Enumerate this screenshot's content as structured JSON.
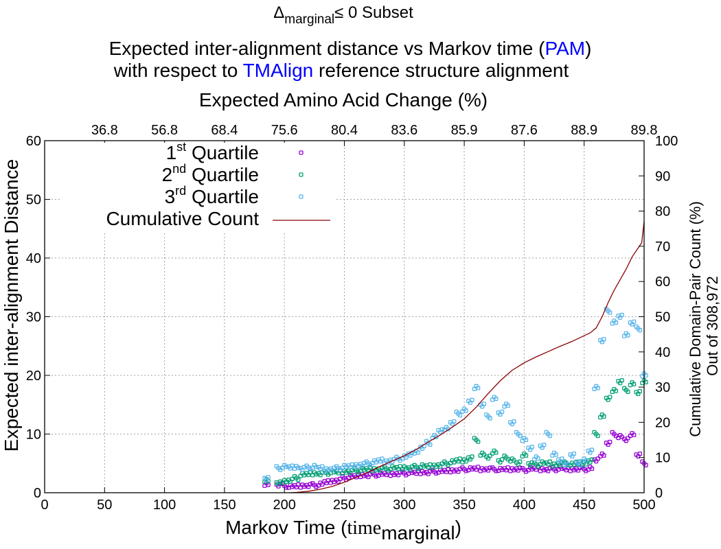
{
  "chart_data": {
    "type": "scatter",
    "title_line1_main": "Δ",
    "title_line1_sub": "marginal",
    "title_line1_rest": "≤ 0 Subset",
    "title_line2_a": "Expected inter-alignment distance vs Markov time (",
    "title_line2_b": "PAM",
    "title_line2_c": ")",
    "title_line3_a": "with respect to ",
    "title_line3_b": "TMAlign",
    "title_line3_c": " reference structure alignment",
    "highlight_color": "#0000ff",
    "x2label": "Expected Amino Acid Change (%)",
    "x2ticks": [
      "36.8",
      "56.8",
      "68.4",
      "75.6",
      "80.4",
      "83.6",
      "85.9",
      "87.6",
      "88.9",
      "89.8"
    ],
    "xlabel_main": "Markov Time (",
    "xlabel_time": "time",
    "xlabel_sub": "marginal",
    "xlabel_end": ")",
    "ylabel": "Expected inter-alignment Distance",
    "y2label_line1": "Cumulative Domain-Pair Count (%)",
    "y2label_line2": "Out of 308,972",
    "xlim": [
      0,
      500
    ],
    "ylim": [
      0,
      60
    ],
    "y2lim": [
      0,
      100
    ],
    "xticks": [
      0,
      50,
      100,
      150,
      200,
      250,
      300,
      350,
      400,
      450,
      500
    ],
    "yticks": [
      0,
      10,
      20,
      30,
      40,
      50,
      60
    ],
    "y2ticks": [
      0,
      10,
      20,
      30,
      40,
      50,
      60,
      70,
      80,
      90,
      100
    ],
    "grid": true,
    "legend_position": "top-left",
    "x": [
      185,
      195,
      200,
      205,
      210,
      215,
      220,
      225,
      230,
      235,
      240,
      245,
      250,
      255,
      260,
      265,
      270,
      275,
      280,
      285,
      290,
      295,
      300,
      305,
      310,
      315,
      320,
      325,
      330,
      335,
      340,
      345,
      350,
      355,
      360,
      365,
      370,
      375,
      380,
      385,
      390,
      395,
      400,
      405,
      410,
      415,
      420,
      425,
      430,
      435,
      440,
      445,
      450,
      455,
      460,
      465,
      470,
      475,
      480,
      485,
      490,
      495,
      500
    ],
    "series": [
      {
        "name": "1st Quartile",
        "color": "#9400d3",
        "values": [
          1.5,
          1.4,
          1.2,
          1.0,
          1.1,
          1.2,
          1.3,
          1.3,
          1.4,
          1.8,
          2.0,
          2.2,
          2.5,
          2.7,
          2.8,
          3.0,
          3.0,
          3.1,
          3.1,
          3.2,
          3.2,
          3.3,
          3.3,
          3.4,
          3.4,
          3.5,
          3.5,
          3.6,
          3.6,
          3.7,
          3.8,
          3.9,
          4.0,
          4.0,
          4.1,
          4.0,
          4.1,
          4.0,
          3.9,
          4.0,
          4.0,
          4.1,
          3.9,
          4.0,
          4.1,
          4.0,
          4.0,
          4.0,
          4.1,
          4.0,
          4.0,
          4.1,
          4.0,
          4.1,
          5.5,
          6.5,
          8.5,
          10.0,
          9.5,
          9.0,
          10.0,
          6.5,
          5.0
        ]
      },
      {
        "name": "2nd Quartile",
        "color": "#009e73",
        "values": [
          2.0,
          1.6,
          2.0,
          2.2,
          2.5,
          3.0,
          3.2,
          3.3,
          3.3,
          3.4,
          3.5,
          3.5,
          3.6,
          3.7,
          3.8,
          3.9,
          4.0,
          4.0,
          4.1,
          4.1,
          4.2,
          4.2,
          4.3,
          4.3,
          4.4,
          4.5,
          4.5,
          4.6,
          4.8,
          5.0,
          5.2,
          5.5,
          5.5,
          6.0,
          9.0,
          6.5,
          6.0,
          7.0,
          5.5,
          6.0,
          5.5,
          5.0,
          6.5,
          5.0,
          4.8,
          5.0,
          5.0,
          4.8,
          5.0,
          5.0,
          4.8,
          5.0,
          5.0,
          5.5,
          10.0,
          13.0,
          16.0,
          17.5,
          19.0,
          17.5,
          18.5,
          17.0,
          19.0
        ]
      },
      {
        "name": "3rd Quartile",
        "color": "#56b4e9",
        "values": [
          2.5,
          4.2,
          4.4,
          4.3,
          4.4,
          4.2,
          4.3,
          4.4,
          4.2,
          4.0,
          4.1,
          4.2,
          4.4,
          4.5,
          4.7,
          4.9,
          5.0,
          5.2,
          5.5,
          5.3,
          5.6,
          5.8,
          6.0,
          6.5,
          7.0,
          7.8,
          8.5,
          9.5,
          10.5,
          11.0,
          12.0,
          13.5,
          14.0,
          15.5,
          18.0,
          15.0,
          13.0,
          16.0,
          13.5,
          15.0,
          12.0,
          10.0,
          9.0,
          7.5,
          6.0,
          8.0,
          10.0,
          6.5,
          5.5,
          5.0,
          6.5,
          5.0,
          5.5,
          7.0,
          18.0,
          26.0,
          31.0,
          29.0,
          30.0,
          27.0,
          29.0,
          28.0,
          20.0
        ]
      },
      {
        "name": "Cumulative Count",
        "color": "#8b0000",
        "axis": "y2",
        "x": [
          205,
          210,
          220,
          230,
          240,
          250,
          260,
          270,
          280,
          290,
          300,
          310,
          320,
          330,
          340,
          350,
          360,
          370,
          380,
          390,
          400,
          410,
          420,
          430,
          440,
          450,
          455,
          460,
          465,
          470,
          475,
          480,
          485,
          490,
          495,
          498,
          500
        ],
        "values": [
          0,
          0.1,
          0.4,
          1.0,
          1.8,
          3.0,
          4.4,
          5.9,
          7.5,
          9.0,
          10.5,
          12.3,
          14.4,
          16.4,
          18.6,
          21.0,
          24.3,
          28.2,
          31.8,
          34.8,
          36.9,
          38.6,
          40.1,
          41.6,
          43.0,
          44.6,
          45.4,
          46.8,
          50.0,
          54.0,
          57.5,
          60.5,
          63.5,
          67.0,
          69.5,
          71,
          77
        ]
      }
    ],
    "legend": [
      {
        "num": "1",
        "sup": "st",
        "label": "Quartile"
      },
      {
        "num": "2",
        "sup": "nd",
        "label": "Quartile"
      },
      {
        "num": "3",
        "sup": "rd",
        "label": "Quartile"
      },
      {
        "num": "",
        "sup": "",
        "label": "Cumulative Count"
      }
    ]
  }
}
